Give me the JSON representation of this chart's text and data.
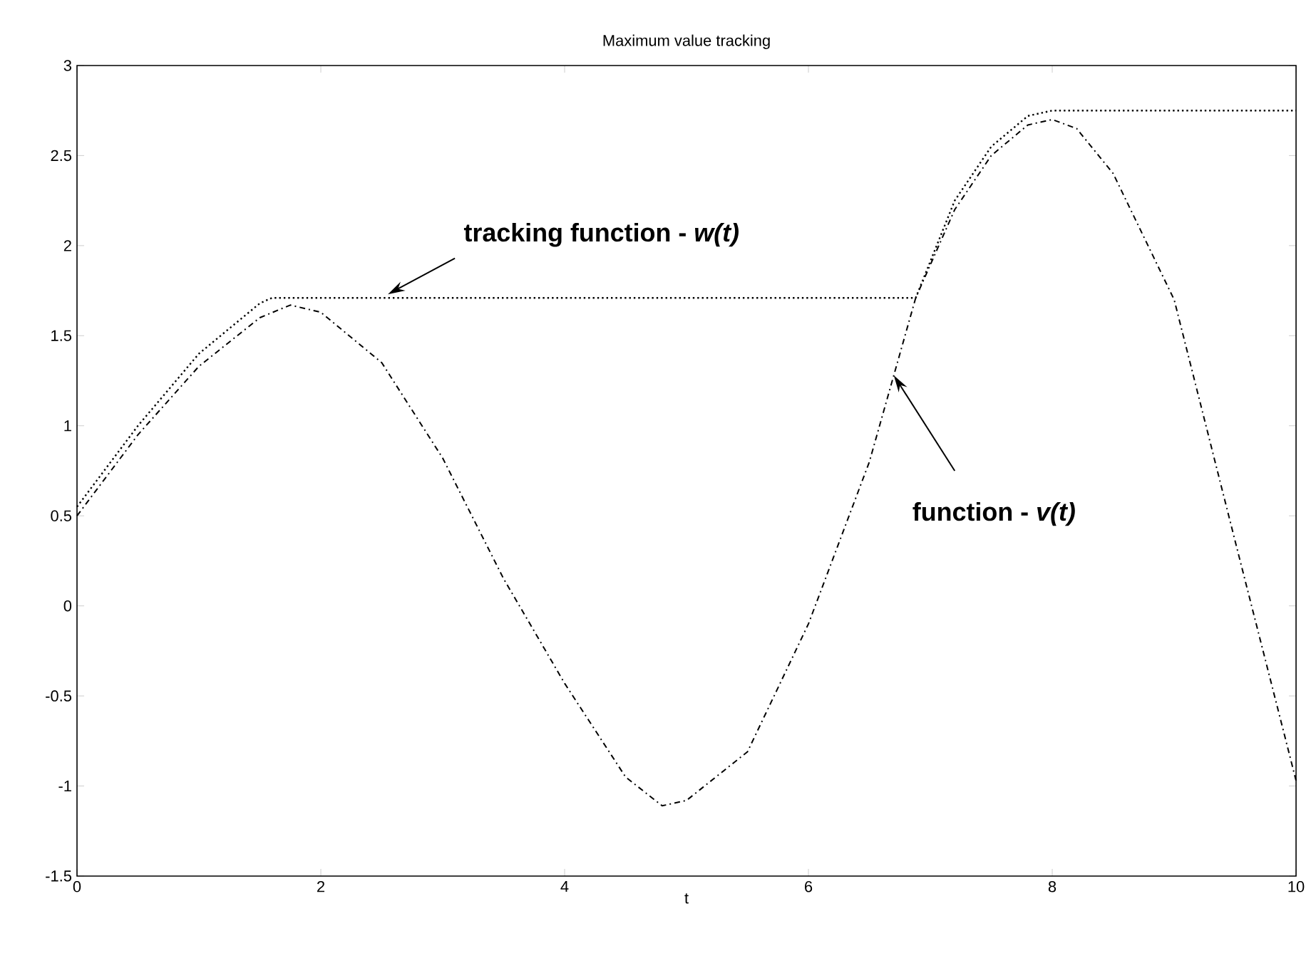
{
  "chart_data": {
    "type": "line",
    "title": "Maximum value tracking",
    "xlabel": "t",
    "series": [
      {
        "color": "#000000",
        "line_style": "dashdot",
        "x": [
          0,
          0.5,
          1.0,
          1.5,
          1.75,
          2.0,
          2.5,
          3.0,
          3.5,
          4.0,
          4.5,
          4.8,
          5.0,
          5.5,
          6.0,
          6.5,
          6.88,
          7.2,
          7.5,
          7.8,
          8.0,
          8.2,
          8.5,
          9.0,
          9.5,
          10
        ],
        "values": [
          0.5,
          0.95,
          1.33,
          1.6,
          1.67,
          1.63,
          1.35,
          0.82,
          0.15,
          -0.43,
          -0.95,
          -1.11,
          -1.08,
          -0.81,
          -0.1,
          0.8,
          1.71,
          2.2,
          2.5,
          2.67,
          2.7,
          2.65,
          2.4,
          1.7,
          0.36,
          -0.97
        ]
      },
      {
        "color": "#000000",
        "line_style": "dotted",
        "x": [
          0,
          0.5,
          1.0,
          1.5,
          1.6,
          6.88,
          7.2,
          7.5,
          7.8,
          8.0,
          10
        ],
        "values": [
          0.55,
          1.0,
          1.4,
          1.68,
          1.71,
          1.71,
          2.25,
          2.55,
          2.72,
          2.75,
          2.75
        ]
      }
    ],
    "xlim": [
      0,
      10
    ],
    "ylim": [
      -1.5,
      3
    ],
    "xticks": [
      0,
      2,
      4,
      6,
      8,
      10
    ],
    "yticks": [
      -1.5,
      -1,
      -0.5,
      0,
      0.5,
      1,
      1.5,
      2,
      2.5,
      3
    ],
    "annotations": [
      {
        "text": "tracking function -  *w(t)*",
        "x": 2.55,
        "y": 1.73
      },
      {
        "text": "function -  *v(t)*",
        "x": 6.7,
        "y": 1.28
      }
    ]
  }
}
